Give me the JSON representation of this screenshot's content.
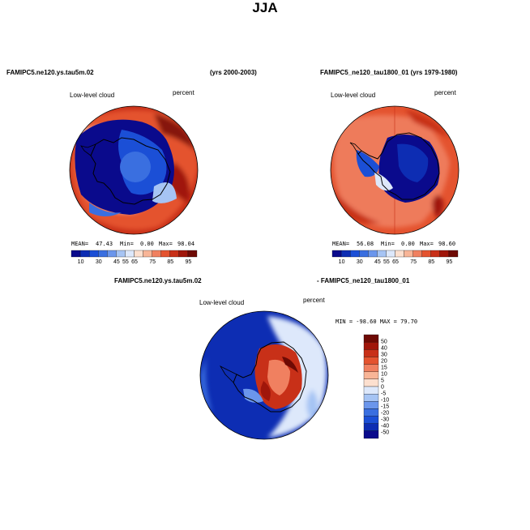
{
  "figure": {
    "title": "JJA",
    "header_left": "FAMIPC5.ne120.ys.tau5m.02",
    "header_left_years": "(yrs 2000-2003)",
    "header_right": "FAMIPC5_ne120_tau1800_01 (yrs 1979-1980)",
    "diff_header_left": "FAMIPC5.ne120.ys.tau5m.02",
    "diff_header_right": "- FAMIPC5_ne120_tau1800_01"
  },
  "colors": {
    "seq_scale": [
      "#0a0a8c",
      "#0d2db3",
      "#1b4fd6",
      "#3a6fe0",
      "#6b96ec",
      "#a6c4f4",
      "#dde8fb",
      "#fde0cf",
      "#f8b597",
      "#f08060",
      "#e4532f",
      "#c83018",
      "#a0160a",
      "#6e0a04"
    ],
    "diff_scale": [
      "#0a0a8c",
      "#0d2db3",
      "#1b4fd6",
      "#3a6fe0",
      "#6b96ec",
      "#a6c4f4",
      "#dde8fb",
      "#fde0cf",
      "#f8b597",
      "#f08060",
      "#e4532f",
      "#c83018",
      "#a0160a",
      "#6e0a04"
    ],
    "land_outline": "#000000"
  },
  "chart_data": [
    {
      "type": "heatmap",
      "panel": "top-left",
      "title": "Low-level cloud",
      "units": "percent",
      "stats": {
        "mean_label": "MEAN=",
        "mean": "47.43",
        "min_label": "Min=",
        "min": "0.00",
        "max_label": "Max=",
        "max": "98.04"
      },
      "colorbar_ticks": [
        "10",
        "30",
        "45",
        "55",
        "65",
        "75",
        "85",
        "95"
      ]
    },
    {
      "type": "heatmap",
      "panel": "top-right",
      "title": "Low-level cloud",
      "units": "percent",
      "stats": {
        "mean_label": "MEAN=",
        "mean": "56.08",
        "min_label": "Min=",
        "min": "0.00",
        "max_label": "Max=",
        "max": "98.60"
      },
      "colorbar_ticks": [
        "10",
        "30",
        "45",
        "55",
        "65",
        "75",
        "85",
        "95"
      ]
    },
    {
      "type": "heatmap",
      "panel": "bottom-difference",
      "title": "Low-level cloud",
      "units": "percent",
      "stats_text": "MIN = -98.60  MAX =  79.70",
      "colorbar_ticks": [
        "50",
        "40",
        "30",
        "20",
        "15",
        "10",
        "5",
        "0",
        "-5",
        "-10",
        "-15",
        "-20",
        "-30",
        "-40",
        "-50"
      ]
    }
  ]
}
